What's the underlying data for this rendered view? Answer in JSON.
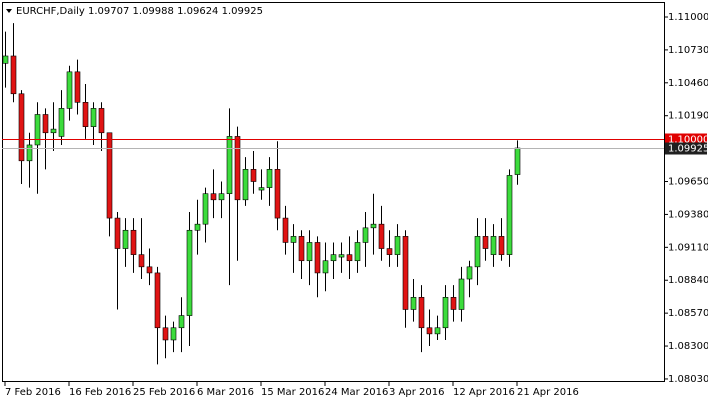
{
  "chart_data": {
    "type": "candlestick",
    "title": "EURCHF,Daily  1.09707 1.09988 1.09624 1.09925",
    "categories": [
      "7 Feb 2016",
      null,
      null,
      null,
      null,
      null,
      null,
      null,
      "16 Feb 2016",
      null,
      null,
      null,
      null,
      null,
      null,
      null,
      "25 Feb 2016",
      null,
      null,
      null,
      null,
      null,
      null,
      null,
      "6 Mar 2016",
      null,
      null,
      null,
      null,
      null,
      null,
      null,
      "15 Mar 2016",
      null,
      null,
      null,
      null,
      null,
      null,
      null,
      "24 Mar 2016",
      null,
      null,
      null,
      null,
      null,
      null,
      null,
      "3 Apr 2016",
      null,
      null,
      null,
      null,
      null,
      null,
      null,
      "12 Apr 2016",
      null,
      null,
      null,
      null,
      null,
      null,
      null,
      "21 Apr 2016"
    ],
    "open": [
      1.1062,
      1.1068,
      1.1037,
      1.0982,
      1.0995,
      1.102,
      1.1005,
      1.1002,
      1.1025,
      1.1055,
      1.103,
      1.101,
      1.1025,
      1.1005,
      1.0935,
      1.091,
      1.0925,
      1.0905,
      1.0895,
      1.089,
      1.0845,
      1.0835,
      1.0845,
      1.0855,
      1.0925,
      1.093,
      1.0955,
      1.095,
      1.0955,
      1.1002,
      1.095,
      1.0975,
      1.0958,
      1.096,
      1.0975,
      1.0935,
      1.0915,
      1.092,
      1.09,
      1.0915,
      1.089,
      1.09,
      1.0903,
      1.0905,
      1.09,
      1.0915,
      1.0927,
      1.093,
      1.091,
      1.0905,
      1.092,
      1.086,
      1.087,
      1.0845,
      1.084,
      1.0845,
      1.087,
      1.086,
      1.0885,
      1.0895,
      1.092,
      1.0905,
      1.092,
      1.0905,
      1.09707
    ],
    "high": [
      1.1088,
      1.1095,
      1.104,
      1.1005,
      1.103,
      1.1025,
      1.103,
      1.104,
      1.106,
      1.1065,
      1.1045,
      1.103,
      1.103,
      1.1005,
      1.094,
      1.0935,
      1.0935,
      1.0935,
      1.091,
      1.0895,
      1.0855,
      1.085,
      1.087,
      1.094,
      1.095,
      1.096,
      1.0975,
      1.0965,
      1.1025,
      1.101,
      1.0985,
      1.099,
      1.0975,
      1.0985,
      1.0998,
      1.0945,
      1.093,
      1.0925,
      1.0925,
      1.092,
      1.0915,
      1.0915,
      1.0915,
      1.092,
      1.0925,
      1.094,
      1.0955,
      1.0945,
      1.0925,
      1.093,
      1.0925,
      1.0885,
      1.088,
      1.086,
      1.0855,
      1.088,
      1.088,
      1.0895,
      1.09,
      1.0935,
      1.0935,
      1.093,
      1.0935,
      1.0975,
      1.09988
    ],
    "low": [
      1.1042,
      1.103,
      1.0963,
      1.096,
      1.0955,
      1.0975,
      1.099,
      1.0995,
      1.1015,
      1.102,
      1.1,
      1.0995,
      1.099,
      1.092,
      1.086,
      1.0895,
      1.089,
      1.0885,
      1.088,
      1.0815,
      1.082,
      1.0825,
      1.0825,
      1.083,
      1.0905,
      1.0915,
      1.0935,
      1.0935,
      1.088,
      1.09,
      1.0945,
      1.0955,
      1.095,
      1.0945,
      1.0925,
      1.0905,
      1.089,
      1.0885,
      1.088,
      1.087,
      1.0875,
      1.0885,
      1.089,
      1.0885,
      1.089,
      1.0895,
      1.0905,
      1.09,
      1.0895,
      1.0895,
      1.0845,
      1.085,
      1.0825,
      1.083,
      1.0835,
      1.0835,
      1.085,
      1.085,
      1.087,
      1.088,
      1.09,
      1.0895,
      1.09,
      1.0895,
      1.09624
    ],
    "close": [
      1.1068,
      1.1037,
      1.0982,
      1.0995,
      1.102,
      1.1005,
      1.1008,
      1.1025,
      1.1055,
      1.103,
      1.101,
      1.1025,
      1.1005,
      1.0935,
      1.091,
      1.0925,
      1.0905,
      1.0895,
      1.089,
      1.0845,
      1.0835,
      1.0845,
      1.0855,
      1.0925,
      1.093,
      1.0955,
      1.095,
      1.0955,
      1.1002,
      1.095,
      1.0975,
      1.0965,
      1.096,
      1.0975,
      1.0935,
      1.0915,
      1.092,
      1.09,
      1.0915,
      1.089,
      1.09,
      1.0905,
      1.0905,
      1.09,
      1.0915,
      1.0927,
      1.093,
      1.091,
      1.0905,
      1.092,
      1.086,
      1.087,
      1.0845,
      1.084,
      1.0845,
      1.087,
      1.086,
      1.0885,
      1.0895,
      1.092,
      1.091,
      1.092,
      1.0905,
      1.097,
      1.09925
    ],
    "up_color": "#3cdc3c",
    "down_color": "#e01414",
    "ylim": [
      1.08005,
      1.11123
    ],
    "yticks": [
      {
        "value": 1.11,
        "label": "1.11000"
      },
      {
        "value": 1.1073,
        "label": "1.10730"
      },
      {
        "value": 1.1046,
        "label": "1.10460"
      },
      {
        "value": 1.1019,
        "label": "1.10190"
      },
      {
        "value": 1.0965,
        "label": "1.09650"
      },
      {
        "value": 1.0938,
        "label": "1.09380"
      },
      {
        "value": 1.0911,
        "label": "1.09110"
      },
      {
        "value": 1.0884,
        "label": "1.08840"
      },
      {
        "value": 1.0857,
        "label": "1.08570"
      },
      {
        "value": 1.083,
        "label": "1.08300"
      },
      {
        "value": 1.0803,
        "label": "1.08030"
      }
    ],
    "hlines": [
      {
        "value": 1.1,
        "label": "1.10000",
        "color": "#e00000"
      },
      {
        "value": 1.09925,
        "label": "1.09925",
        "color": "#b4b4b4"
      }
    ]
  }
}
